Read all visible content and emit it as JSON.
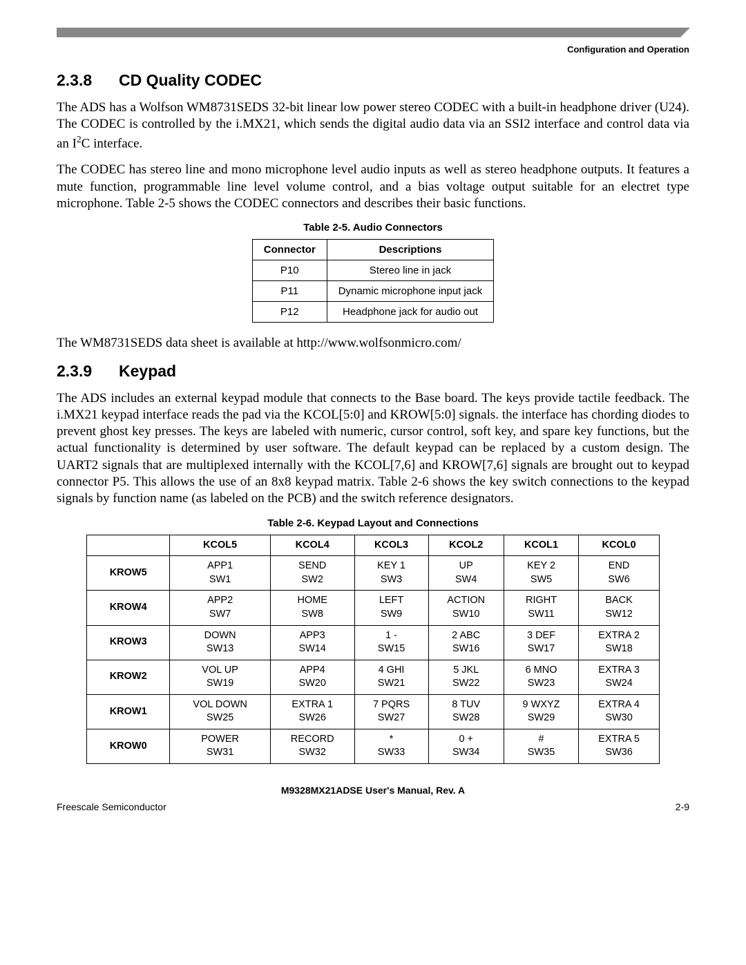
{
  "header": {
    "right": "Configuration and Operation"
  },
  "s238": {
    "num": "2.3.8",
    "title": "CD Quality CODEC",
    "p1a": "The ADS has a Wolfson WM8731SEDS 32-bit linear low power stereo CODEC with a built-in headphone driver (U24). The CODEC is controlled by the i.MX21, which sends the digital audio data via an SSI2 interface and control data via an I",
    "p1b": "C interface.",
    "p2": "The CODEC has stereo line and mono microphone level audio inputs as well as stereo headphone outputs. It features a mute function, programmable line level volume control, and a bias voltage output suitable for an electret type microphone. Table 2-5 shows the CODEC connectors and describes their basic functions.",
    "table_caption": "Table 2-5.  Audio Connectors",
    "th1": "Connector",
    "th2": "Descriptions",
    "rows": [
      {
        "c": "P10",
        "d": "Stereo line in jack"
      },
      {
        "c": "P11",
        "d": "Dynamic microphone input jack"
      },
      {
        "c": "P12",
        "d": "Headphone jack for audio out"
      }
    ],
    "p3": "The WM8731SEDS data sheet is available at http://www.wolfsonmicro.com/"
  },
  "s239": {
    "num": "2.3.9",
    "title": "Keypad",
    "p1": "The ADS includes an external keypad module that connects to the Base board. The keys provide tactile feedback. The i.MX21 keypad interface reads the pad via the KCOL[5:0] and KROW[5:0] signals. the interface has chording diodes to prevent ghost key presses. The keys are labeled with numeric, cursor control, soft key, and spare key functions, but the actual functionality is determined by user software. The default keypad can be replaced by a custom design. The UART2 signals that are multiplexed internally with the KCOL[7,6] and KROW[7,6] signals are brought out to keypad connector P5. This allows the use of an 8x8 keypad matrix. Table 2-6 shows the key switch connections to the keypad signals by function name (as labeled on the PCB) and the switch reference designators.",
    "table_caption": "Table 2-6.  Keypad Layout and Connections",
    "cols": [
      "KCOL5",
      "KCOL4",
      "KCOL3",
      "KCOL2",
      "KCOL1",
      "KCOL0"
    ],
    "rows": [
      {
        "h": "KROW5",
        "c": [
          [
            "APP1",
            "SW1"
          ],
          [
            "SEND",
            "SW2"
          ],
          [
            "KEY 1",
            "SW3"
          ],
          [
            "UP",
            "SW4"
          ],
          [
            "KEY 2",
            "SW5"
          ],
          [
            "END",
            "SW6"
          ]
        ]
      },
      {
        "h": "KROW4",
        "c": [
          [
            "APP2",
            "SW7"
          ],
          [
            "HOME",
            "SW8"
          ],
          [
            "LEFT",
            "SW9"
          ],
          [
            "ACTION",
            "SW10"
          ],
          [
            "RIGHT",
            "SW11"
          ],
          [
            "BACK",
            "SW12"
          ]
        ]
      },
      {
        "h": "KROW3",
        "c": [
          [
            "DOWN",
            "SW13"
          ],
          [
            "APP3",
            "SW14"
          ],
          [
            "1 -",
            "SW15"
          ],
          [
            "2 ABC",
            "SW16"
          ],
          [
            "3 DEF",
            "SW17"
          ],
          [
            "EXTRA 2",
            "SW18"
          ]
        ]
      },
      {
        "h": "KROW2",
        "c": [
          [
            "VOL UP",
            "SW19"
          ],
          [
            "APP4",
            "SW20"
          ],
          [
            "4 GHI",
            "SW21"
          ],
          [
            "5 JKL",
            "SW22"
          ],
          [
            "6 MNO",
            "SW23"
          ],
          [
            "EXTRA 3",
            "SW24"
          ]
        ]
      },
      {
        "h": "KROW1",
        "c": [
          [
            "VOL DOWN",
            "SW25"
          ],
          [
            "EXTRA 1",
            "SW26"
          ],
          [
            "7 PQRS",
            "SW27"
          ],
          [
            "8 TUV",
            "SW28"
          ],
          [
            "9 WXYZ",
            "SW29"
          ],
          [
            "EXTRA 4",
            "SW30"
          ]
        ]
      },
      {
        "h": "KROW0",
        "c": [
          [
            "POWER",
            "SW31"
          ],
          [
            "RECORD",
            "SW32"
          ],
          [
            "*",
            "SW33"
          ],
          [
            "0 +",
            "SW34"
          ],
          [
            "#",
            "SW35"
          ],
          [
            "EXTRA 5",
            "SW36"
          ]
        ]
      }
    ]
  },
  "footer": {
    "title": "M9328MX21ADSE User's Manual, Rev. A",
    "left": "Freescale Semiconductor",
    "right": "2-9"
  }
}
